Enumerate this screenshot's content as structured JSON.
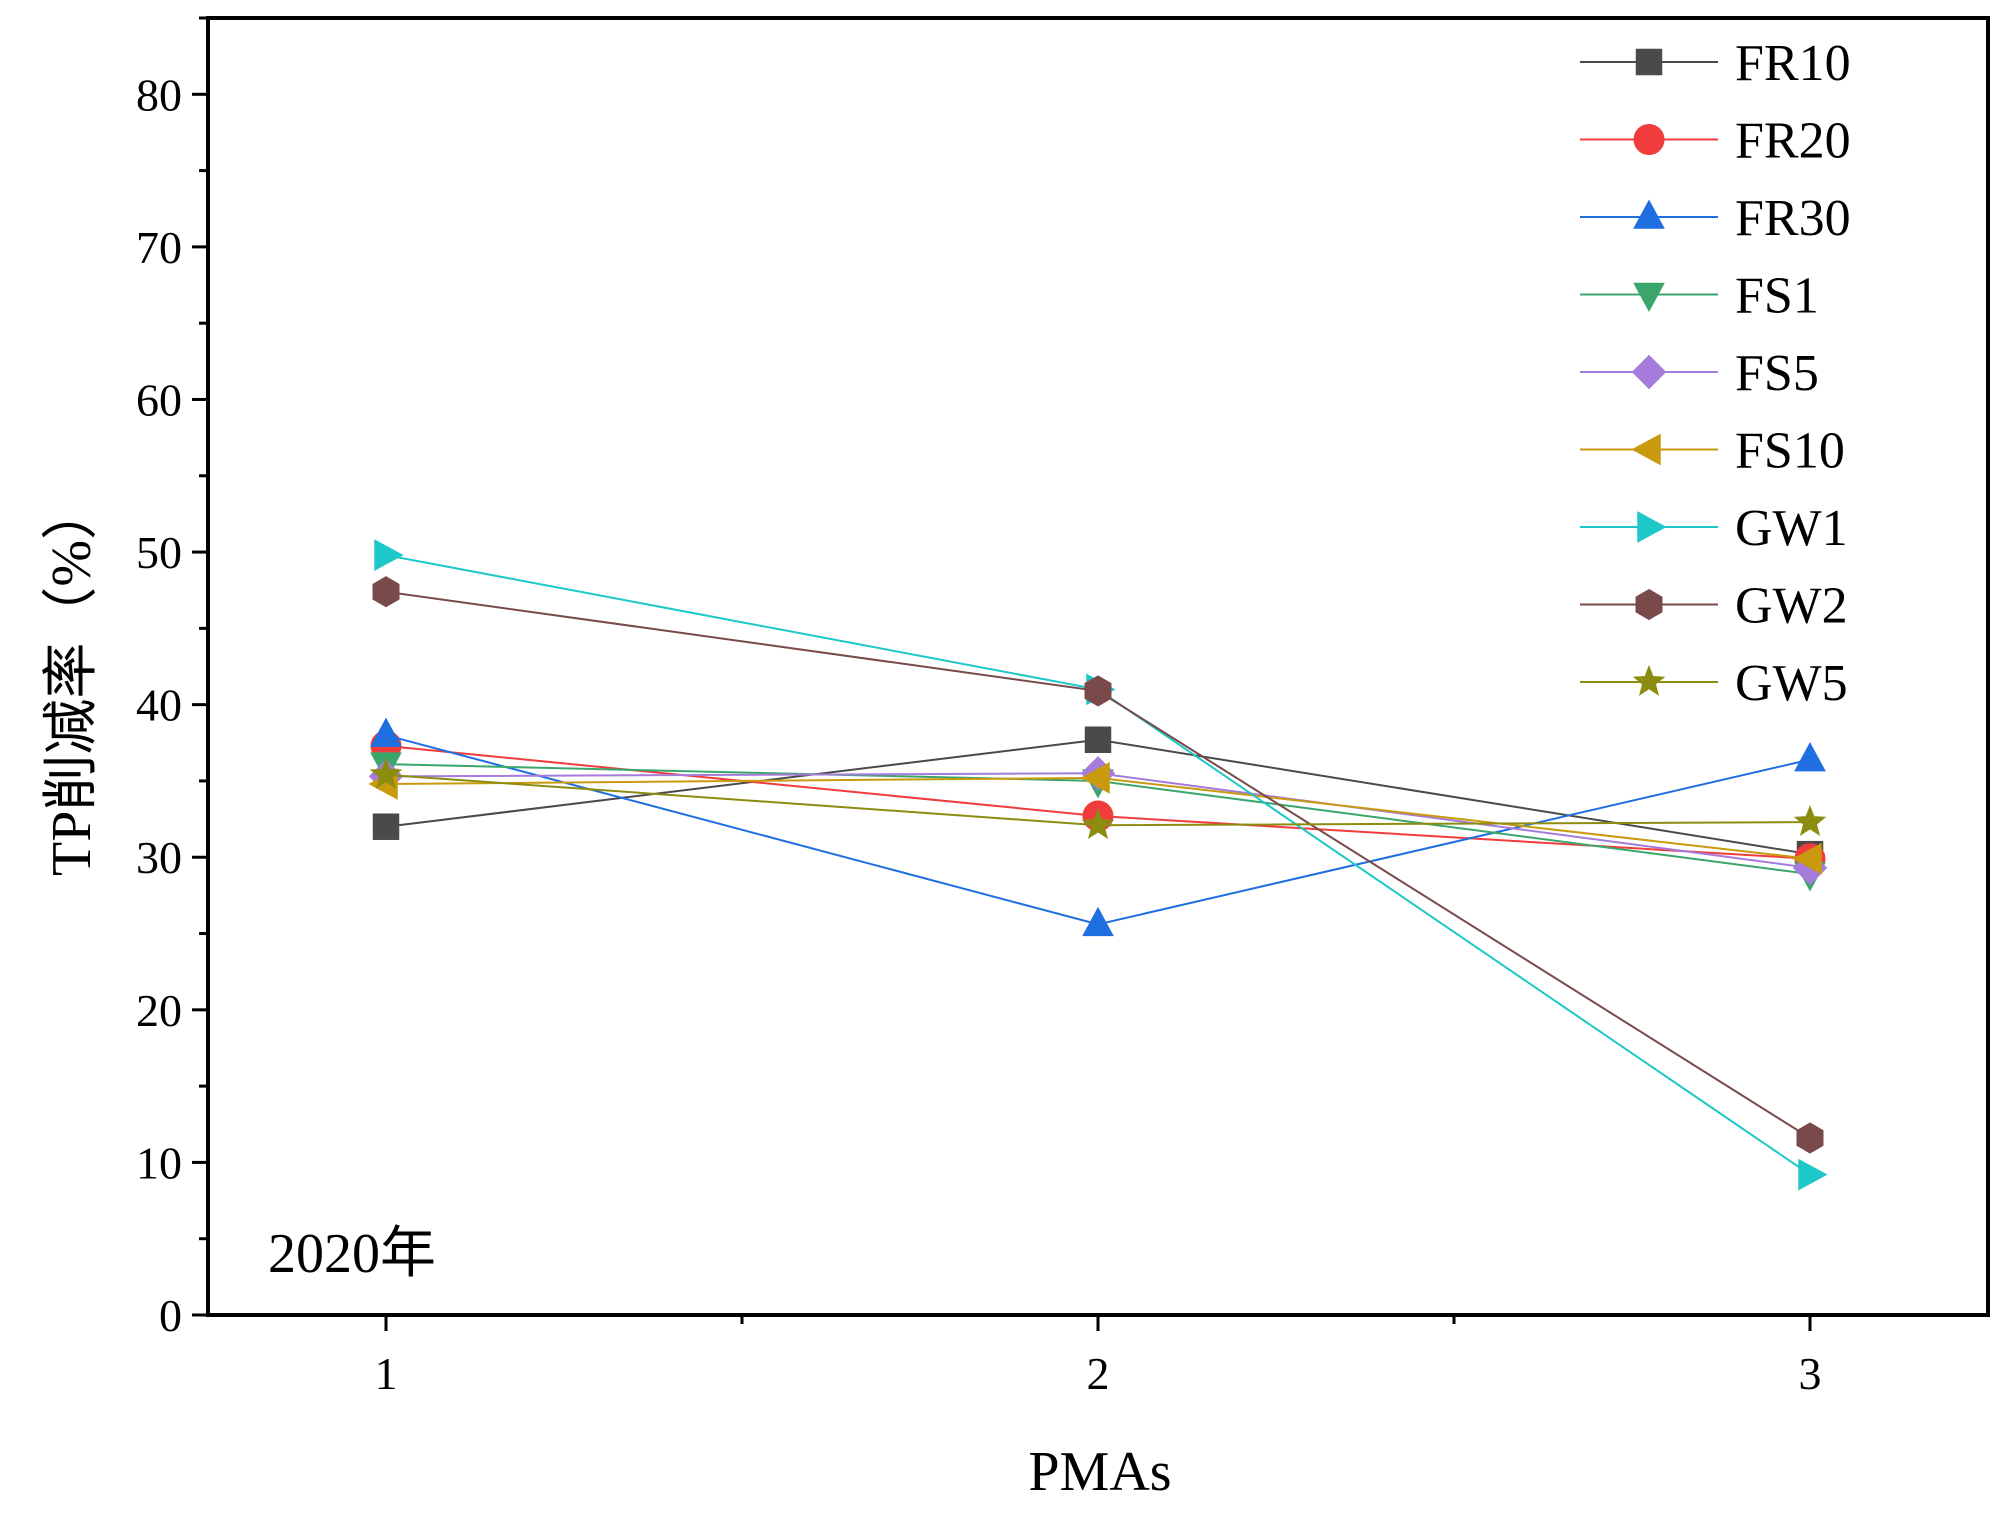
{
  "chart_data": {
    "type": "line",
    "title": "",
    "xlabel": "PMAs",
    "ylabel": "TP削减率（%）",
    "annotation": "2020年",
    "x": [
      1,
      2,
      3
    ],
    "xticks": [
      "1",
      "2",
      "3"
    ],
    "xlim": [
      0.75,
      3.25
    ],
    "ylim": [
      0,
      85
    ],
    "yticks": [
      "0",
      "10",
      "20",
      "30",
      "40",
      "50",
      "60",
      "70",
      "80"
    ],
    "grid": false,
    "legend_position": "top-right",
    "series": [
      {
        "name": "FR10",
        "values": [
          32.0,
          37.7,
          30.2
        ],
        "color": "#4a4a4a",
        "marker": "square"
      },
      {
        "name": "FR20",
        "values": [
          37.3,
          32.7,
          29.9
        ],
        "color": "#f03c3c",
        "marker": "circle"
      },
      {
        "name": "FR30",
        "values": [
          38.0,
          25.6,
          36.4
        ],
        "color": "#1f6fe0",
        "marker": "triangle-up"
      },
      {
        "name": "FS1",
        "values": [
          36.1,
          35.0,
          28.9
        ],
        "color": "#3aa66b",
        "marker": "triangle-down"
      },
      {
        "name": "FS5",
        "values": [
          35.3,
          35.5,
          29.3
        ],
        "color": "#a57bdc",
        "marker": "diamond"
      },
      {
        "name": "FS10",
        "values": [
          34.8,
          35.2,
          29.9
        ],
        "color": "#c99a0e",
        "marker": "triangle-left"
      },
      {
        "name": "GW1",
        "values": [
          49.8,
          41.0,
          9.2
        ],
        "color": "#1ec8c8",
        "marker": "triangle-right"
      },
      {
        "name": "GW2",
        "values": [
          47.4,
          40.9,
          11.6
        ],
        "color": "#7a4a4a",
        "marker": "hexagon"
      },
      {
        "name": "GW5",
        "values": [
          35.4,
          32.1,
          32.3
        ],
        "color": "#8c8c10",
        "marker": "star"
      }
    ]
  }
}
